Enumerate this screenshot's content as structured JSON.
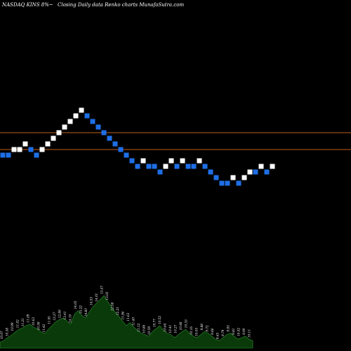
{
  "header": {
    "symbol_label": "NASDAQ KINS 8%~",
    "chart_description": "Closing Daily data  Renko  charts MunafaSutra.com"
  },
  "colors": {
    "background": "#000000",
    "up_brick": "#ffffff",
    "down_brick": "#1e6fe6",
    "level_line": "#c0601a",
    "volume_fill": "#0a3a0a",
    "volume_stroke": "#2f8f2f"
  },
  "chart_data": {
    "type": "renko",
    "title": "NASDAQ KINS 8%~ Closing Daily data Renko charts MunafaSutra.com",
    "bricks": [
      {
        "dir": "down",
        "level": 0
      },
      {
        "dir": "down",
        "level": 0
      },
      {
        "dir": "up",
        "level": 1
      },
      {
        "dir": "up",
        "level": 1
      },
      {
        "dir": "up",
        "level": 2
      },
      {
        "dir": "down",
        "level": 1
      },
      {
        "dir": "down",
        "level": 0
      },
      {
        "dir": "up",
        "level": 1
      },
      {
        "dir": "up",
        "level": 2
      },
      {
        "dir": "up",
        "level": 3
      },
      {
        "dir": "up",
        "level": 4
      },
      {
        "dir": "up",
        "level": 5
      },
      {
        "dir": "up",
        "level": 6
      },
      {
        "dir": "up",
        "level": 7
      },
      {
        "dir": "up",
        "level": 8
      },
      {
        "dir": "down",
        "level": 7
      },
      {
        "dir": "down",
        "level": 6
      },
      {
        "dir": "down",
        "level": 5
      },
      {
        "dir": "down",
        "level": 4
      },
      {
        "dir": "down",
        "level": 3
      },
      {
        "dir": "down",
        "level": 2
      },
      {
        "dir": "down",
        "level": 1
      },
      {
        "dir": "down",
        "level": 0
      },
      {
        "dir": "down",
        "level": -1
      },
      {
        "dir": "down",
        "level": -2
      },
      {
        "dir": "up",
        "level": -1
      },
      {
        "dir": "down",
        "level": -2
      },
      {
        "dir": "down",
        "level": -2
      },
      {
        "dir": "down",
        "level": -3
      },
      {
        "dir": "up",
        "level": -2
      },
      {
        "dir": "up",
        "level": -1
      },
      {
        "dir": "down",
        "level": -2
      },
      {
        "dir": "up",
        "level": -1
      },
      {
        "dir": "down",
        "level": -2
      },
      {
        "dir": "down",
        "level": -2
      },
      {
        "dir": "up",
        "level": -1
      },
      {
        "dir": "down",
        "level": -2
      },
      {
        "dir": "down",
        "level": -3
      },
      {
        "dir": "down",
        "level": -4
      },
      {
        "dir": "down",
        "level": -5
      },
      {
        "dir": "down",
        "level": -5
      },
      {
        "dir": "up",
        "level": -4
      },
      {
        "dir": "down",
        "level": -5
      },
      {
        "dir": "up",
        "level": -4
      },
      {
        "dir": "up",
        "level": -3
      },
      {
        "dir": "down",
        "level": -3
      },
      {
        "dir": "up",
        "level": -2
      },
      {
        "dir": "down",
        "level": -3
      },
      {
        "dir": "up",
        "level": -2
      }
    ],
    "reference_lines": [
      {
        "level": 3.5
      },
      {
        "level": 0.5
      }
    ],
    "volume_profile": [
      8,
      10,
      14,
      17,
      21,
      25,
      27,
      30,
      32,
      28,
      26,
      22,
      19,
      25,
      30,
      35,
      38,
      40,
      36,
      32,
      45,
      50,
      44,
      40,
      48,
      55,
      60,
      65,
      70,
      62,
      55,
      48,
      42,
      36,
      30,
      34,
      28,
      24,
      20,
      18,
      16,
      22,
      26,
      30,
      24,
      20,
      18,
      14,
      18,
      22,
      25,
      20,
      16,
      14,
      18,
      22,
      20,
      16,
      12,
      10,
      14,
      18,
      20,
      16,
      12,
      14,
      16,
      12,
      10
    ],
    "volume_labels": [
      "10.07",
      "10.38",
      "10.99",
      "11.02",
      "11.21",
      "11.09",
      "10.63",
      "10.59",
      "11.42",
      "11.91",
      "12.27",
      "12.89",
      "13.41",
      "14.10",
      "14.65",
      "15.22",
      "14.80",
      "14.53",
      "14.01",
      "13.47",
      "13.02",
      "12.58",
      "12.21",
      "11.86",
      "11.63",
      "11.40",
      "11.12",
      "10.86",
      "10.59",
      "10.77",
      "10.52",
      "10.64",
      "10.41",
      "10.27",
      "10.48",
      "10.33",
      "10.16",
      "10.05",
      "9.88",
      "9.72",
      "9.86",
      "9.65",
      "9.79",
      "9.93",
      "9.81",
      "10.02",
      "9.90",
      "10.11"
    ]
  }
}
